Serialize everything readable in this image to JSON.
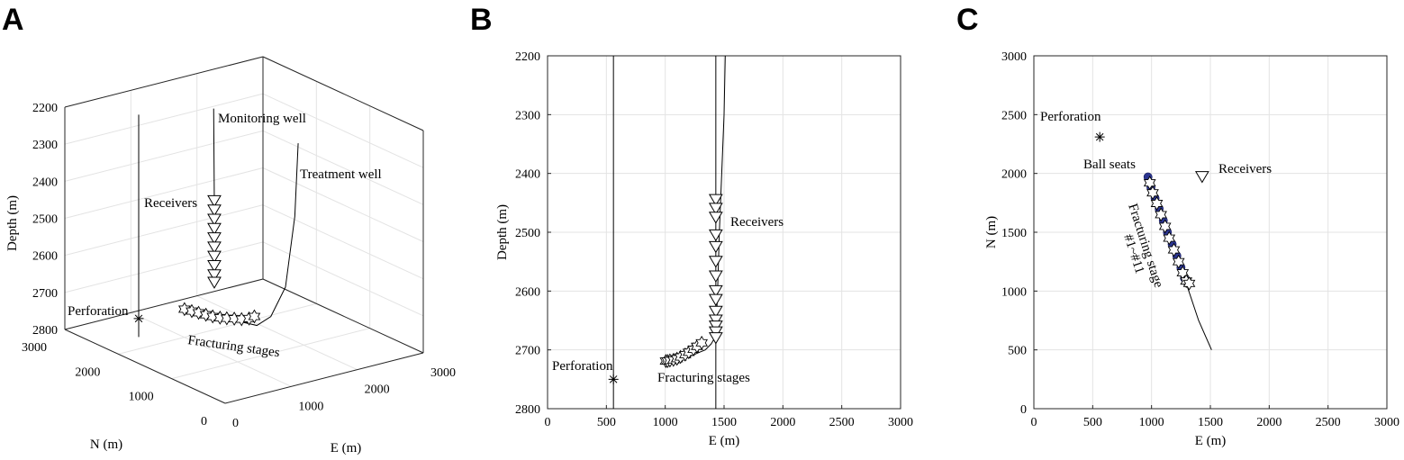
{
  "chart_data": [
    {
      "panel": "A",
      "type": "line",
      "title": "",
      "xlabel": "E (m)",
      "ylabel": "N (m)",
      "zlabel": "Depth (m)",
      "xlim": [
        0,
        3000
      ],
      "ylim": [
        0,
        3000
      ],
      "zlim": [
        2200,
        2800
      ],
      "x_ticks": [
        "0",
        "1000",
        "2000",
        "3000"
      ],
      "y_ticks": [
        "0",
        "1000",
        "2000",
        "3000"
      ],
      "z_ticks": [
        "2200",
        "2300",
        "2400",
        "2500",
        "2600",
        "2700",
        "2800"
      ],
      "grid": true,
      "series": [
        {
          "name": "Monitoring well",
          "marker": "none",
          "points": [
            [
              1420,
              1970,
              2200
            ],
            [
              1430,
              1970,
              2450
            ],
            [
              1440,
              1970,
              2680
            ]
          ]
        },
        {
          "name": "Treatment well",
          "marker": "none",
          "points": [
            [
              1510,
              500,
              2200
            ],
            [
              1500,
              550,
              2400
            ],
            [
              1480,
              700,
              2600
            ],
            [
              1420,
              900,
              2690
            ],
            [
              1330,
              1050,
              2720
            ],
            [
              1000,
              1900,
              2720
            ]
          ]
        },
        {
          "name": "Perforation",
          "marker": "asterisk",
          "points": [
            [
              560,
              2310,
              2750
            ]
          ]
        },
        {
          "name": "Perforation well",
          "marker": "none",
          "points": [
            [
              560,
              2310,
              2200
            ],
            [
              560,
              2310,
              2800
            ]
          ]
        },
        {
          "name": "Receivers",
          "marker": "triangle-down",
          "points": [
            [
              1430,
              1970,
              2450
            ],
            [
              1430,
              1970,
              2475
            ],
            [
              1430,
              1970,
              2500
            ],
            [
              1430,
              1970,
              2525
            ],
            [
              1430,
              1970,
              2550
            ],
            [
              1430,
              1970,
              2575
            ],
            [
              1430,
              1970,
              2600
            ],
            [
              1430,
              1970,
              2625
            ],
            [
              1430,
              1970,
              2650
            ],
            [
              1430,
              1970,
              2670
            ]
          ]
        },
        {
          "name": "Fracturing stages",
          "marker": "hexagram",
          "points": [
            [
              970,
              1960,
              2720
            ],
            [
              1000,
              1860,
              2720
            ],
            [
              1030,
              1770,
              2720
            ],
            [
              1060,
              1670,
              2720
            ],
            [
              1090,
              1580,
              2720
            ],
            [
              1120,
              1480,
              2718
            ],
            [
              1150,
              1390,
              2715
            ],
            [
              1190,
              1300,
              2712
            ],
            [
              1220,
              1200,
              2708
            ],
            [
              1260,
              1110,
              2702
            ],
            [
              1300,
              1060,
              2695
            ]
          ]
        }
      ],
      "annotations": [
        "Monitoring well",
        "Treatment well",
        "Receivers",
        "Perforation",
        "Fracturing stages"
      ]
    },
    {
      "panel": "B",
      "type": "line",
      "title": "",
      "xlabel": "E (m)",
      "ylabel": "Depth (m)",
      "xlim": [
        0,
        3000
      ],
      "ylim": [
        2200,
        2800
      ],
      "y_reversed": true,
      "x_ticks": [
        "0",
        "500",
        "1000",
        "1500",
        "2000",
        "2500",
        "3000"
      ],
      "y_ticks": [
        "2200",
        "2300",
        "2400",
        "2500",
        "2600",
        "2700",
        "2800"
      ],
      "grid": true,
      "series": [
        {
          "name": "Perforation well",
          "marker": "none",
          "x": [
            560,
            560
          ],
          "y": [
            2200,
            2800
          ]
        },
        {
          "name": "Monitoring well",
          "marker": "none",
          "x": [
            1430,
            1430
          ],
          "y": [
            2200,
            2800
          ]
        },
        {
          "name": "Treatment well",
          "marker": "none",
          "x": [
            1510,
            1500,
            1480,
            1460,
            1445,
            1435,
            1430,
            1420,
            1390,
            1340,
            1280,
            1200,
            1100,
            1000
          ],
          "y": [
            2200,
            2300,
            2400,
            2500,
            2600,
            2650,
            2670,
            2680,
            2690,
            2700,
            2705,
            2712,
            2718,
            2720
          ]
        },
        {
          "name": "Perforation",
          "marker": "asterisk",
          "x": [
            560
          ],
          "y": [
            2750
          ]
        },
        {
          "name": "Receivers",
          "marker": "triangle-down",
          "x": [
            1430,
            1430,
            1430,
            1430,
            1430,
            1430,
            1430,
            1430,
            1430,
            1430,
            1430,
            1430,
            1430,
            1430
          ],
          "y": [
            2445,
            2460,
            2475,
            2505,
            2525,
            2550,
            2575,
            2600,
            2615,
            2635,
            2650,
            2660,
            2670,
            2680
          ]
        },
        {
          "name": "Fracturing stages",
          "marker": "hexagram",
          "x": [
            1005,
            1020,
            1040,
            1070,
            1100,
            1130,
            1170,
            1200,
            1240,
            1270,
            1310
          ],
          "y": [
            2719,
            2719,
            2718,
            2717,
            2715,
            2712,
            2708,
            2704,
            2699,
            2694,
            2688
          ]
        }
      ],
      "annotations": [
        "Receivers",
        "Perforation",
        "Fracturing stages"
      ]
    },
    {
      "panel": "C",
      "type": "scatter",
      "title": "",
      "xlabel": "E (m)",
      "ylabel": "N (m)",
      "xlim": [
        0,
        3000
      ],
      "ylim": [
        0,
        3000
      ],
      "x_ticks": [
        "0",
        "500",
        "1000",
        "1500",
        "2000",
        "2500",
        "3000"
      ],
      "y_ticks": [
        "0",
        "500",
        "1000",
        "1500",
        "2000",
        "2500",
        "3000"
      ],
      "grid": true,
      "series": [
        {
          "name": "Treatment well",
          "marker": "none",
          "x": [
            970,
            1100,
            1300,
            1400,
            1510
          ],
          "y": [
            1970,
            1550,
            1050,
            750,
            500
          ]
        },
        {
          "name": "Perforation",
          "marker": "asterisk",
          "x": [
            560
          ],
          "y": [
            2310
          ]
        },
        {
          "name": "Receivers",
          "marker": "triangle-down",
          "x": [
            1430
          ],
          "y": [
            1970
          ]
        },
        {
          "name": "Ball seats",
          "marker": "filled-circle",
          "color": "#2b3590",
          "x": [
            970,
            995,
            1030,
            1065,
            1100,
            1135,
            1175,
            1215,
            1250,
            1280,
            1300
          ],
          "y": [
            1970,
            1880,
            1790,
            1700,
            1600,
            1500,
            1400,
            1300,
            1200,
            1110,
            1080
          ]
        },
        {
          "name": "Fracturing stage #1~#11",
          "marker": "hexagram",
          "x": [
            985,
            1010,
            1045,
            1080,
            1115,
            1150,
            1190,
            1230,
            1265,
            1295,
            1320
          ],
          "y": [
            1920,
            1835,
            1745,
            1650,
            1550,
            1450,
            1350,
            1250,
            1155,
            1085,
            1065
          ]
        }
      ],
      "annotations": [
        "Perforation",
        "Ball seats",
        "Receivers",
        "Fracturing stage",
        "#1~#11"
      ]
    }
  ],
  "labels": {
    "panel_a": "A",
    "panel_b": "B",
    "panel_c": "C",
    "monitoring_well": "Monitoring well",
    "treatment_well": "Treatment well",
    "receivers": "Receivers",
    "perforation": "Perforation",
    "fracturing_stages": "Fracturing stages",
    "ball_seats": "Ball seats",
    "fracturing_stage": "Fracturing stage",
    "stage_range": "#1~#11",
    "depth_axis": "Depth (m)",
    "e_axis": "E (m)",
    "n_axis": "N (m)"
  },
  "colors": {
    "ball_seat_fill": "#2b3590",
    "grid": "#e3e3e3",
    "line": "#000000"
  }
}
